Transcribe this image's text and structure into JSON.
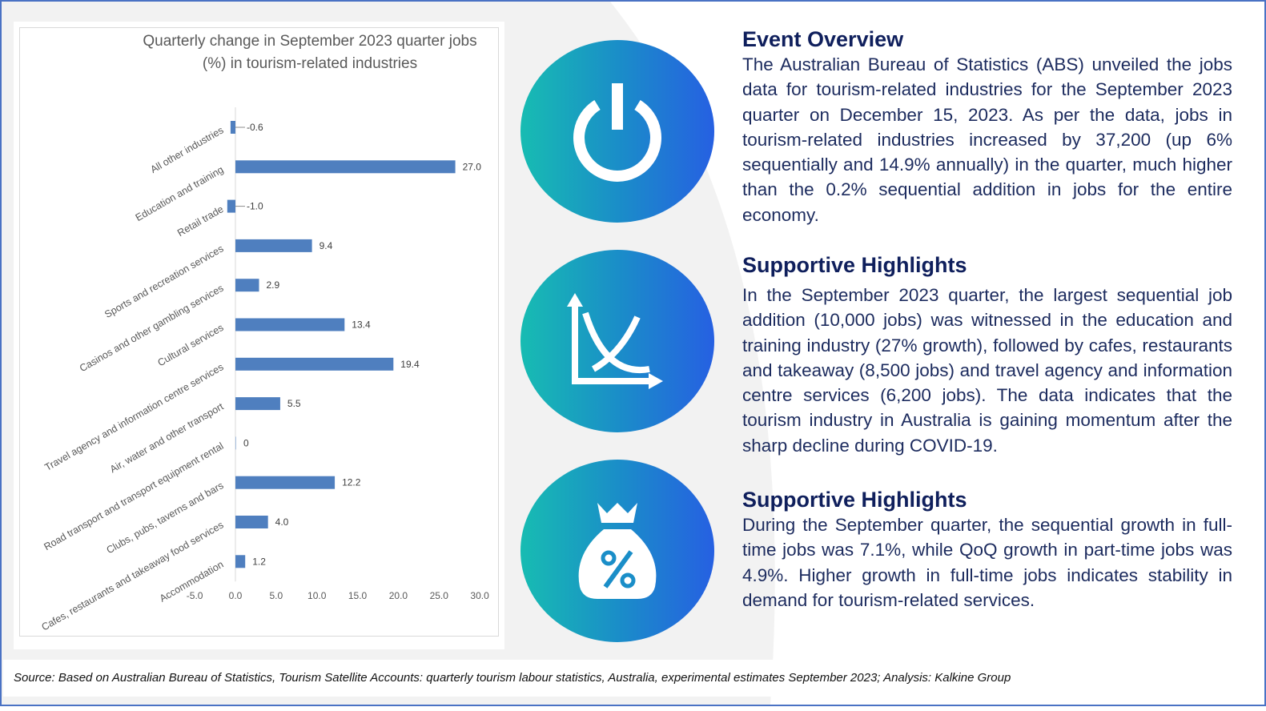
{
  "chart_data": {
    "type": "bar",
    "orientation": "horizontal",
    "title": "Quarterly change in September 2023 quarter jobs (%) in tourism-related industries",
    "title_lines": [
      "Quarterly change in September 2023 quarter jobs",
      "(%) in tourism-related industries"
    ],
    "categories": [
      "All other industries",
      "Education and training",
      "Retail trade",
      "Sports and recreation services",
      "Casinos and other gambling services",
      "Cultural services",
      "Travel agency and information centre services",
      "Air, water and other transport",
      "Road transport and transport equipment rental",
      "Clubs, pubs, taverns and bars",
      "Cafes, restaurants and takeaway food services",
      "Accommodation"
    ],
    "values": [
      -0.6,
      27.0,
      -1.0,
      9.4,
      2.9,
      13.4,
      19.4,
      5.5,
      0,
      12.2,
      4.0,
      1.2
    ],
    "value_labels": [
      "-0.6",
      "27.0",
      "-1.0",
      "9.4",
      "2.9",
      "13.4",
      "19.4",
      "5.5",
      "0",
      "12.2",
      "4.0",
      "1.2"
    ],
    "xlim": [
      -5,
      30
    ],
    "x_ticks": [
      "-5.0",
      "0.0",
      "5.0",
      "10.0",
      "15.0",
      "20.0",
      "25.0",
      "30.0"
    ],
    "bar_color": "#4f7fbf",
    "grid": false,
    "legend": "none"
  },
  "sections": [
    {
      "heading": "Event Overview",
      "body": "The Australian Bureau of Statistics (ABS) unveiled the jobs data for tourism-related industries for the September 2023 quarter on December 15, 2023. As per the data, jobs in tourism-related industries increased by 37,200 (up 6% sequentially and 14.9% annually) in the quarter, much higher than the 0.2% sequential addition in jobs for the entire economy.",
      "icon": "power-icon"
    },
    {
      "heading": "Supportive Highlights",
      "body": "In the September 2023 quarter, the largest sequential job addition (10,000 jobs) was witnessed in the education and training industry (27% growth), followed by cafes, restaurants and takeaway (8,500 jobs) and travel agency and information centre services (6,200 jobs). The data indicates that the tourism industry in Australia is gaining momentum after the sharp decline during COVID-19.",
      "icon": "chart-curve-icon"
    },
    {
      "heading": "Supportive Highlights",
      "body": "During the September quarter, the sequential growth in full-time jobs was 7.1%, while QoQ growth in part-time jobs was 4.9%. Higher growth in full-time jobs indicates stability in demand for tourism-related services.",
      "icon": "money-bag-percent-icon"
    }
  ],
  "footer": {
    "source": "Source: Based on Australian Bureau of Statistics, Tourism Satellite Accounts: quarterly tourism labour statistics, Australia, experimental estimates September 2023; Analysis: Kalkine Group"
  }
}
